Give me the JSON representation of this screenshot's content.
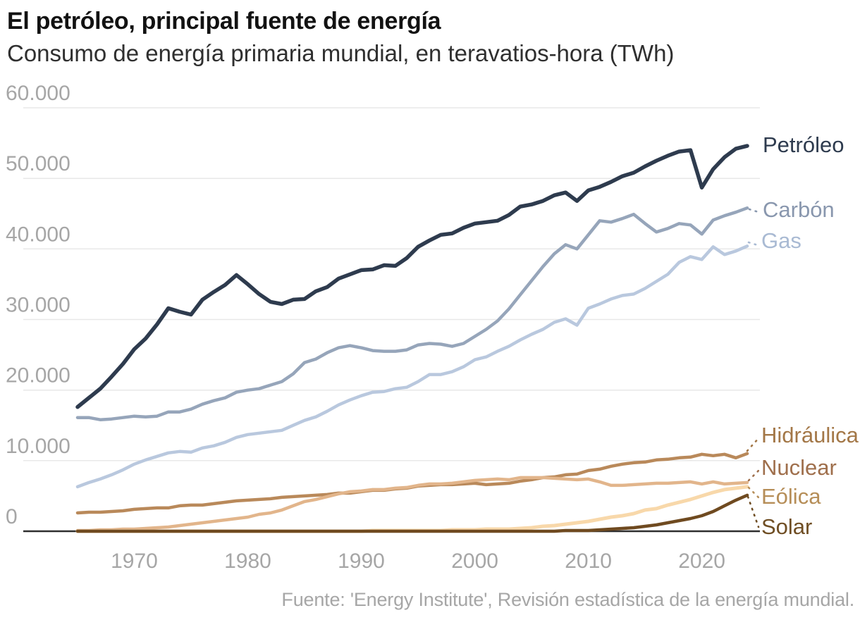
{
  "header": {
    "title": "El petróleo, principal fuente de energía",
    "subtitle": "Consumo de energía primaria mundial, en teravatios-hora (TWh)"
  },
  "footer": {
    "source": "Fuente: 'Energy Institute', Revisión estadística de la energía mundial."
  },
  "chart_data": {
    "type": "line",
    "title": "El petróleo, principal fuente de energía",
    "subtitle": "Consumo de energía primaria mundial, en teravatios-hora (TWh)",
    "unit": "TWh",
    "grid": true,
    "ylim": [
      0,
      60000
    ],
    "x_range": [
      1965,
      2024
    ],
    "y_ticks": [
      {
        "value": 60000,
        "label": "60.000"
      },
      {
        "value": 50000,
        "label": "50.000"
      },
      {
        "value": 40000,
        "label": "40.000"
      },
      {
        "value": 30000,
        "label": "30.000"
      },
      {
        "value": 20000,
        "label": "20.000"
      },
      {
        "value": 10000,
        "label": "10.000"
      },
      {
        "value": 0,
        "label": "0"
      }
    ],
    "x_ticks": [
      {
        "value": 1970,
        "label": "1970"
      },
      {
        "value": 1980,
        "label": "1980"
      },
      {
        "value": 1990,
        "label": "1990"
      },
      {
        "value": 2000,
        "label": "2000"
      },
      {
        "value": 2010,
        "label": "2010"
      },
      {
        "value": 2020,
        "label": "2020"
      }
    ],
    "x": [
      1965,
      1966,
      1967,
      1968,
      1969,
      1970,
      1971,
      1972,
      1973,
      1974,
      1975,
      1976,
      1977,
      1978,
      1979,
      1980,
      1981,
      1982,
      1983,
      1984,
      1985,
      1986,
      1987,
      1988,
      1989,
      1990,
      1991,
      1992,
      1993,
      1994,
      1995,
      1996,
      1997,
      1998,
      1999,
      2000,
      2001,
      2002,
      2003,
      2004,
      2005,
      2006,
      2007,
      2008,
      2009,
      2010,
      2011,
      2012,
      2013,
      2014,
      2015,
      2016,
      2017,
      2018,
      2019,
      2020,
      2021,
      2022,
      2023,
      2024
    ],
    "series": [
      {
        "id": "petroleo",
        "name": "Petróleo",
        "color": "#2e3b4e",
        "label_color": "#2e3b4e",
        "values": [
          17600,
          18900,
          20200,
          21900,
          23700,
          25800,
          27300,
          29300,
          31600,
          31100,
          30700,
          32800,
          33900,
          34900,
          36300,
          35000,
          33600,
          32500,
          32200,
          32800,
          32900,
          34000,
          34600,
          35800,
          36400,
          37000,
          37100,
          37700,
          37600,
          38700,
          40300,
          41200,
          42000,
          42200,
          43000,
          43600,
          43800,
          44000,
          44800,
          46000,
          46300,
          46800,
          47600,
          48000,
          46800,
          48300,
          48800,
          49500,
          50300,
          50800,
          51700,
          52500,
          53200,
          53800,
          54000,
          48700,
          51300,
          53000,
          54200,
          54600
        ]
      },
      {
        "id": "carbon",
        "name": "Carbón",
        "color": "#96a5ba",
        "label_color": "#8997ae",
        "values": [
          16100,
          16100,
          15800,
          15900,
          16100,
          16300,
          16200,
          16300,
          16900,
          16900,
          17300,
          18000,
          18500,
          18900,
          19700,
          20000,
          20200,
          20700,
          21200,
          22300,
          23900,
          24400,
          25300,
          26000,
          26300,
          26000,
          25600,
          25500,
          25500,
          25700,
          26400,
          26600,
          26500,
          26200,
          26600,
          27600,
          28600,
          29800,
          31500,
          33500,
          35500,
          37500,
          39300,
          40600,
          40000,
          42000,
          44000,
          43800,
          44300,
          44900,
          43600,
          42400,
          42900,
          43600,
          43400,
          42100,
          44100,
          44700,
          45200,
          45800
        ]
      },
      {
        "id": "gas",
        "name": "Gas",
        "color": "#b9c8de",
        "label_color": "#a9bad3",
        "values": [
          6300,
          6900,
          7400,
          8000,
          8700,
          9500,
          10100,
          10600,
          11100,
          11300,
          11200,
          11800,
          12100,
          12600,
          13300,
          13700,
          13900,
          14100,
          14300,
          15000,
          15700,
          16200,
          17000,
          17900,
          18600,
          19200,
          19700,
          19800,
          20200,
          20400,
          21200,
          22200,
          22200,
          22600,
          23300,
          24300,
          24700,
          25500,
          26200,
          27100,
          27900,
          28600,
          29600,
          30100,
          29200,
          31600,
          32200,
          32900,
          33400,
          33600,
          34400,
          35400,
          36400,
          38100,
          38900,
          38500,
          40300,
          39200,
          39700,
          40400
        ]
      },
      {
        "id": "hidraulica",
        "name": "Hidráulica",
        "color": "#b9895a",
        "label_color": "#a37747",
        "values": [
          2600,
          2700,
          2700,
          2800,
          2900,
          3100,
          3200,
          3300,
          3300,
          3600,
          3700,
          3700,
          3900,
          4100,
          4300,
          4400,
          4500,
          4600,
          4800,
          4900,
          5000,
          5100,
          5200,
          5400,
          5400,
          5600,
          5800,
          5800,
          6000,
          6100,
          6400,
          6500,
          6600,
          6600,
          6700,
          6800,
          6600,
          6700,
          6800,
          7100,
          7300,
          7600,
          7700,
          8000,
          8100,
          8600,
          8800,
          9200,
          9500,
          9700,
          9800,
          10100,
          10200,
          10400,
          10500,
          10900,
          10700,
          10900,
          10400,
          11000
        ]
      },
      {
        "id": "nuclear",
        "name": "Nuclear",
        "color": "#e2b58b",
        "label_color": "#9f6f4c",
        "values": [
          100,
          100,
          200,
          200,
          300,
          300,
          400,
          500,
          600,
          800,
          1000,
          1200,
          1400,
          1600,
          1800,
          2000,
          2400,
          2600,
          3000,
          3600,
          4200,
          4500,
          4900,
          5300,
          5600,
          5700,
          5900,
          5900,
          6100,
          6200,
          6500,
          6700,
          6700,
          6800,
          7000,
          7200,
          7300,
          7400,
          7300,
          7600,
          7600,
          7600,
          7500,
          7400,
          7300,
          7400,
          7000,
          6500,
          6500,
          6600,
          6700,
          6800,
          6800,
          6900,
          7000,
          6700,
          7000,
          6700,
          6800,
          6900
        ]
      },
      {
        "id": "eolica",
        "name": "Eólica",
        "color": "#f8d8aa",
        "label_color": "#b68e58",
        "values": [
          0,
          0,
          0,
          0,
          0,
          0,
          0,
          0,
          0,
          0,
          0,
          0,
          0,
          0,
          0,
          0,
          0,
          0,
          0,
          0,
          0,
          0,
          0,
          0,
          0,
          0,
          100,
          100,
          100,
          100,
          100,
          100,
          100,
          200,
          200,
          200,
          300,
          300,
          300,
          400,
          500,
          700,
          800,
          1000,
          1200,
          1400,
          1700,
          2000,
          2200,
          2500,
          3000,
          3200,
          3700,
          4100,
          4500,
          5000,
          5500,
          5900,
          6100,
          6300
        ]
      },
      {
        "id": "solar",
        "name": "Solar",
        "color": "#6f4a20",
        "label_color": "#6f4e24",
        "values": [
          0,
          0,
          0,
          0,
          0,
          0,
          0,
          0,
          0,
          0,
          0,
          0,
          0,
          0,
          0,
          0,
          0,
          0,
          0,
          0,
          0,
          0,
          0,
          0,
          0,
          0,
          0,
          0,
          0,
          0,
          0,
          0,
          0,
          0,
          0,
          0,
          0,
          0,
          0,
          0,
          0,
          0,
          0,
          100,
          100,
          100,
          200,
          300,
          400,
          500,
          700,
          900,
          1200,
          1500,
          1800,
          2200,
          2800,
          3600,
          4400,
          5100
        ]
      }
    ],
    "axis_color": "#2e2e2e",
    "gridline_color": "#e8e8e8",
    "tick_label_color": "#a6a6a6"
  }
}
